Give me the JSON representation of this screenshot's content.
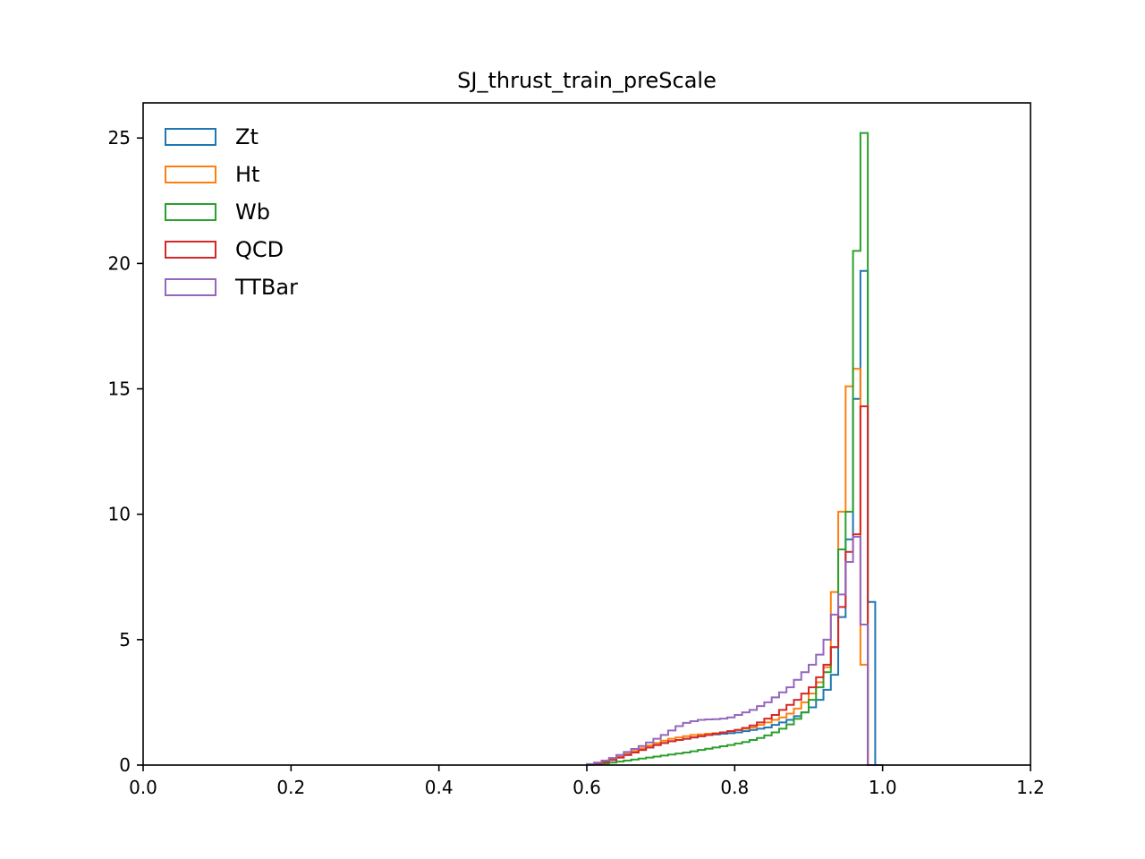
{
  "chart_data": {
    "type": "histogram-step",
    "title": "SJ_thrust_train_preScale",
    "xlabel": "",
    "ylabel": "",
    "xlim": [
      0.0,
      1.2
    ],
    "ylim": [
      0,
      26.4
    ],
    "xticks": [
      0.0,
      0.2,
      0.4,
      0.6,
      0.8,
      1.0,
      1.2
    ],
    "xtick_labels": [
      "0.0",
      "0.2",
      "0.4",
      "0.6",
      "0.8",
      "1.0",
      "1.2"
    ],
    "yticks": [
      0,
      5,
      10,
      15,
      20,
      25
    ],
    "ytick_labels": [
      "0",
      "5",
      "10",
      "15",
      "20",
      "25"
    ],
    "grid": false,
    "legend": "top-left",
    "bin_edges": [
      0.6,
      0.61,
      0.62,
      0.63,
      0.64,
      0.65,
      0.66,
      0.67,
      0.68,
      0.69,
      0.7,
      0.71,
      0.72,
      0.73,
      0.74,
      0.75,
      0.76,
      0.77,
      0.78,
      0.79,
      0.8,
      0.81,
      0.82,
      0.83,
      0.84,
      0.85,
      0.86,
      0.87,
      0.88,
      0.89,
      0.9,
      0.91,
      0.92,
      0.93,
      0.94,
      0.95,
      0.96,
      0.97,
      0.98,
      0.99,
      1.0
    ],
    "series": [
      {
        "name": "Zt",
        "color": "#1f77b4",
        "values": [
          0.02,
          0.06,
          0.12,
          0.2,
          0.3,
          0.4,
          0.5,
          0.6,
          0.7,
          0.8,
          0.88,
          0.95,
          1.0,
          1.05,
          1.1,
          1.15,
          1.2,
          1.22,
          1.25,
          1.27,
          1.3,
          1.35,
          1.4,
          1.45,
          1.5,
          1.6,
          1.7,
          1.8,
          1.95,
          2.1,
          2.3,
          2.6,
          3.0,
          3.6,
          5.9,
          9.0,
          14.6,
          19.7,
          6.5,
          0.0
        ]
      },
      {
        "name": "Ht",
        "color": "#ff7f0e",
        "values": [
          0.02,
          0.07,
          0.14,
          0.22,
          0.33,
          0.45,
          0.56,
          0.67,
          0.78,
          0.88,
          0.97,
          1.05,
          1.1,
          1.15,
          1.2,
          1.22,
          1.25,
          1.27,
          1.3,
          1.35,
          1.4,
          1.45,
          1.5,
          1.6,
          1.7,
          1.8,
          1.9,
          2.05,
          2.25,
          2.5,
          2.85,
          3.3,
          3.9,
          6.9,
          10.1,
          15.1,
          15.8,
          4.0,
          0.0,
          0.0
        ]
      },
      {
        "name": "Wb",
        "color": "#2ca02c",
        "values": [
          0.01,
          0.03,
          0.06,
          0.1,
          0.14,
          0.18,
          0.22,
          0.26,
          0.3,
          0.34,
          0.38,
          0.42,
          0.46,
          0.5,
          0.55,
          0.6,
          0.65,
          0.7,
          0.75,
          0.8,
          0.86,
          0.92,
          1.0,
          1.08,
          1.18,
          1.3,
          1.45,
          1.62,
          1.84,
          2.1,
          2.6,
          3.1,
          3.7,
          4.7,
          8.6,
          10.1,
          20.5,
          25.2,
          0.0,
          0.0
        ]
      },
      {
        "name": "QCD",
        "color": "#d62728",
        "values": [
          0.02,
          0.06,
          0.12,
          0.2,
          0.3,
          0.4,
          0.5,
          0.6,
          0.7,
          0.8,
          0.88,
          0.95,
          1.0,
          1.05,
          1.1,
          1.15,
          1.2,
          1.25,
          1.3,
          1.35,
          1.4,
          1.48,
          1.58,
          1.7,
          1.85,
          2.0,
          2.2,
          2.4,
          2.6,
          2.85,
          3.1,
          3.5,
          4.0,
          4.7,
          6.3,
          8.5,
          9.2,
          14.3,
          0.0,
          0.0
        ]
      },
      {
        "name": "TTBar",
        "color": "#9467bd",
        "values": [
          0.04,
          0.1,
          0.18,
          0.28,
          0.4,
          0.52,
          0.64,
          0.76,
          0.9,
          1.05,
          1.2,
          1.38,
          1.55,
          1.68,
          1.75,
          1.8,
          1.82,
          1.83,
          1.85,
          1.9,
          2.0,
          2.1,
          2.2,
          2.35,
          2.5,
          2.7,
          2.9,
          3.1,
          3.4,
          3.7,
          4.0,
          4.4,
          5.0,
          6.0,
          6.8,
          8.1,
          9.1,
          5.6,
          0.0,
          0.0
        ]
      }
    ]
  }
}
